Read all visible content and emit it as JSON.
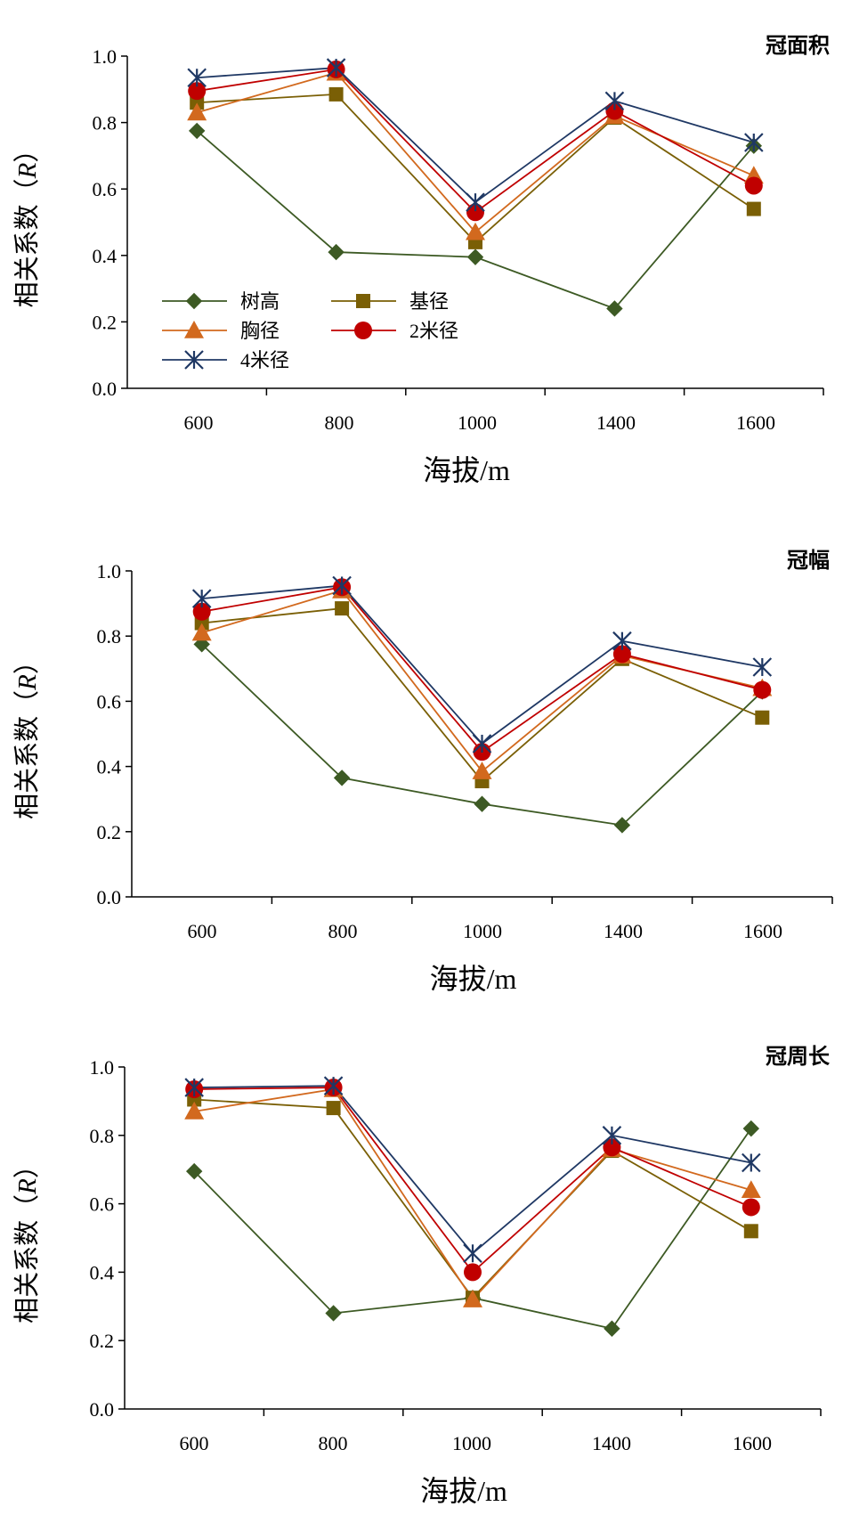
{
  "figure": {
    "colors": {
      "树高": "#3d5a24",
      "基径": "#7a5f05",
      "胸径": "#d2691e",
      "2米径": "#c00000",
      "4米径": "#1f3864",
      "axis": "#000000"
    },
    "markers": {
      "树高": "diamond",
      "基径": "square",
      "胸径": "triangle",
      "2米径": "circle",
      "4米径": "asterisk"
    }
  },
  "chart_data": [
    {
      "type": "line",
      "title": "冠面积",
      "xlabel": "海拔/m",
      "ylabel_text": "相关系数（",
      "ylabel_italic": "R",
      "ylabel_close": "）",
      "ylim": [
        0,
        1
      ],
      "yticks": [
        "0.0",
        "0.2",
        "0.4",
        "0.6",
        "0.8",
        "1.0"
      ],
      "categories": [
        "600",
        "800",
        "1000",
        "1400",
        "1600"
      ],
      "legend": {
        "shown": true,
        "placement": "bottom-left"
      },
      "series": [
        {
          "name": "树高",
          "values": [
            0.775,
            0.41,
            0.395,
            0.24,
            0.73
          ]
        },
        {
          "name": "基径",
          "values": [
            0.86,
            0.885,
            0.44,
            0.815,
            0.54
          ]
        },
        {
          "name": "胸径",
          "values": [
            0.83,
            0.95,
            0.47,
            0.82,
            0.64
          ]
        },
        {
          "name": "2米径",
          "values": [
            0.895,
            0.96,
            0.53,
            0.835,
            0.61
          ]
        },
        {
          "name": "4米径",
          "values": [
            0.935,
            0.965,
            0.56,
            0.865,
            0.74
          ]
        }
      ]
    },
    {
      "type": "line",
      "title": "冠幅",
      "xlabel": "海拔/m",
      "ylabel_text": "相关系数（",
      "ylabel_italic": "R",
      "ylabel_close": "）",
      "ylim": [
        0,
        1
      ],
      "yticks": [
        "0.0",
        "0.2",
        "0.4",
        "0.6",
        "0.8",
        "1.0"
      ],
      "categories": [
        "600",
        "800",
        "1000",
        "1400",
        "1600"
      ],
      "legend": {
        "shown": false
      },
      "series": [
        {
          "name": "树高",
          "values": [
            0.775,
            0.365,
            0.285,
            0.22,
            0.63
          ]
        },
        {
          "name": "基径",
          "values": [
            0.84,
            0.885,
            0.355,
            0.73,
            0.55
          ]
        },
        {
          "name": "胸径",
          "values": [
            0.81,
            0.94,
            0.385,
            0.74,
            0.64
          ]
        },
        {
          "name": "2米径",
          "values": [
            0.875,
            0.95,
            0.445,
            0.745,
            0.635
          ]
        },
        {
          "name": "4米径",
          "values": [
            0.915,
            0.955,
            0.47,
            0.785,
            0.705
          ]
        }
      ]
    },
    {
      "type": "line",
      "title": "冠周长",
      "xlabel": "海拔/m",
      "ylabel_text": "相关系数（",
      "ylabel_italic": "R",
      "ylabel_close": "）",
      "ylim": [
        0,
        1
      ],
      "yticks": [
        "0.0",
        "0.2",
        "0.4",
        "0.6",
        "0.8",
        "1.0"
      ],
      "categories": [
        "600",
        "800",
        "1000",
        "1400",
        "1600"
      ],
      "legend": {
        "shown": false
      },
      "series": [
        {
          "name": "树高",
          "values": [
            0.695,
            0.28,
            0.325,
            0.235,
            0.82
          ]
        },
        {
          "name": "基径",
          "values": [
            0.905,
            0.88,
            0.325,
            0.755,
            0.52
          ]
        },
        {
          "name": "胸径",
          "values": [
            0.87,
            0.935,
            0.32,
            0.76,
            0.64
          ]
        },
        {
          "name": "2米径",
          "values": [
            0.935,
            0.94,
            0.4,
            0.765,
            0.59
          ]
        },
        {
          "name": "4米径",
          "values": [
            0.94,
            0.945,
            0.455,
            0.8,
            0.72
          ]
        }
      ]
    }
  ]
}
